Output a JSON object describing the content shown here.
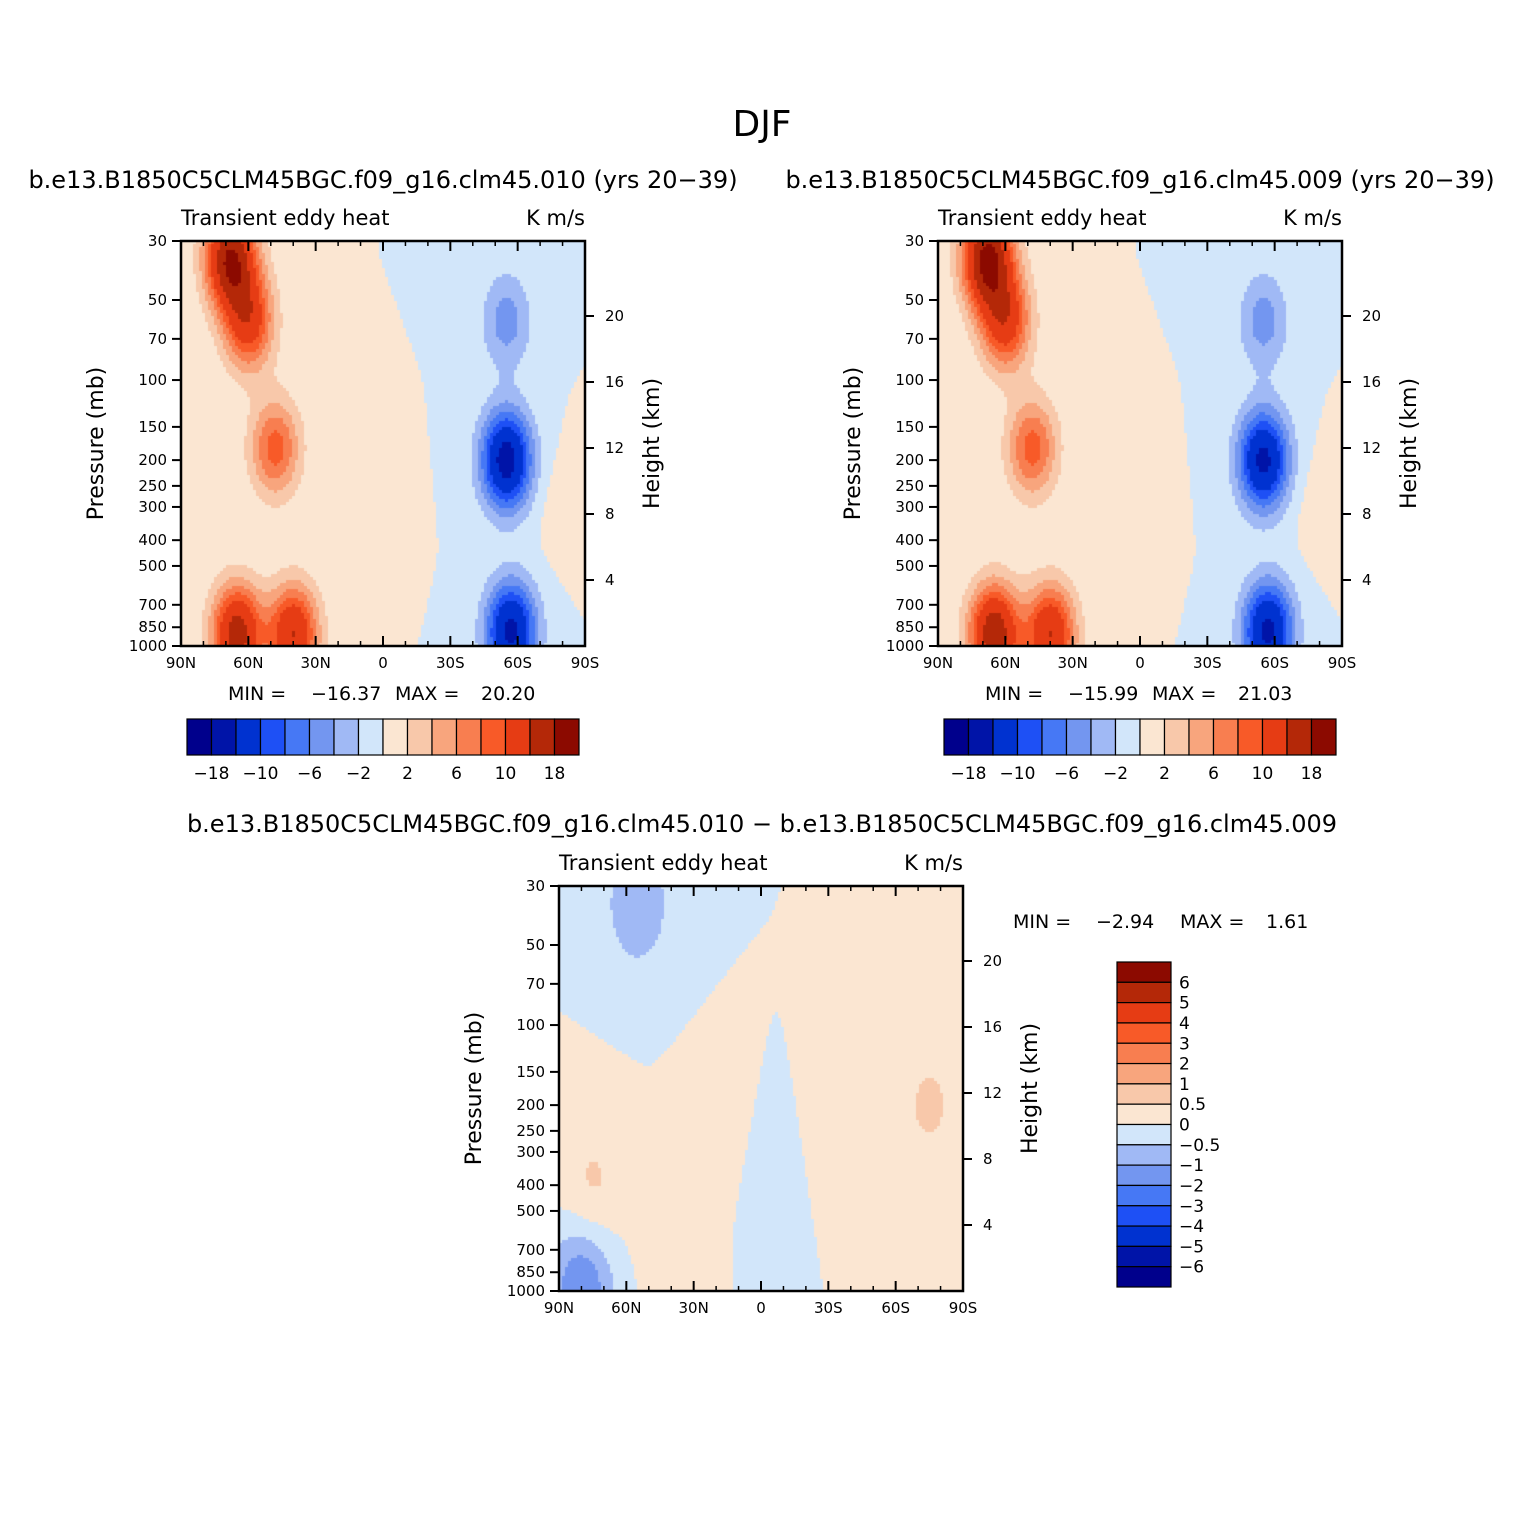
{
  "figure": {
    "title": "DJF",
    "diff_title": "b.e13.B1850C5CLM45BGC.f09_g16.clm45.010 − b.e13.B1850C5CLM45BGC.f09_g16.clm45.009"
  },
  "chart_data": [
    {
      "type": "heatmap",
      "title": "b.e13.B1850C5CLM45BGC.f09_g16.clm45.010 (yrs 20−39)",
      "variable_label": "Transient eddy heat",
      "units_label": "K m/s",
      "ylabel": "Pressure (mb)",
      "ylabel_right": "Height (km)",
      "x_ticks": [
        "90N",
        "60N",
        "30N",
        "0",
        "30S",
        "60S",
        "90S"
      ],
      "y_ticks": [
        "30",
        "50",
        "70",
        "100",
        "150",
        "200",
        "250",
        "300",
        "400",
        "500",
        "700",
        "850",
        "1000"
      ],
      "y_ticks_right": [
        "20",
        "16",
        "12",
        "8",
        "4"
      ],
      "min_label": "MIN =",
      "min_value": "−16.37",
      "max_label": "MAX =",
      "max_value": "20.20",
      "colorbar_labels": [
        "−18",
        "−10",
        "−6",
        "−2",
        "2",
        "6",
        "10",
        "18"
      ],
      "levels": [
        -18,
        -14,
        -10,
        -8,
        -6,
        -4,
        -2,
        0,
        2,
        4,
        6,
        8,
        10,
        14,
        18
      ],
      "features": [
        {
          "lat": 68,
          "p": 35,
          "value": 18
        },
        {
          "lat": 60,
          "p": 60,
          "value": 12
        },
        {
          "lat": 48,
          "p": 180,
          "value": 9
        },
        {
          "lat": 65,
          "p": 900,
          "value": 16
        },
        {
          "lat": 40,
          "p": 900,
          "value": 14
        },
        {
          "lat": -55,
          "p": 200,
          "value": -16
        },
        {
          "lat": -57,
          "p": 880,
          "value": -15
        },
        {
          "lat": -55,
          "p": 60,
          "value": -5
        },
        {
          "lat": 5,
          "p": 300,
          "value": 1
        },
        {
          "lat": -80,
          "p": 300,
          "value": 1
        }
      ]
    },
    {
      "type": "heatmap",
      "title": "b.e13.B1850C5CLM45BGC.f09_g16.clm45.009 (yrs 20−39)",
      "variable_label": "Transient eddy heat",
      "units_label": "K m/s",
      "ylabel": "Pressure (mb)",
      "ylabel_right": "Height (km)",
      "x_ticks": [
        "90N",
        "60N",
        "30N",
        "0",
        "30S",
        "60S",
        "90S"
      ],
      "y_ticks": [
        "30",
        "50",
        "70",
        "100",
        "150",
        "200",
        "250",
        "300",
        "400",
        "500",
        "700",
        "850",
        "1000"
      ],
      "y_ticks_right": [
        "20",
        "16",
        "12",
        "8",
        "4"
      ],
      "min_label": "MIN =",
      "min_value": "−15.99",
      "max_label": "MAX =",
      "max_value": "21.03",
      "colorbar_labels": [
        "−18",
        "−10",
        "−6",
        "−2",
        "2",
        "6",
        "10",
        "18"
      ],
      "levels": [
        -18,
        -14,
        -10,
        -8,
        -6,
        -4,
        -2,
        0,
        2,
        4,
        6,
        8,
        10,
        14,
        18
      ],
      "features": [
        {
          "lat": 68,
          "p": 35,
          "value": 19
        },
        {
          "lat": 60,
          "p": 60,
          "value": 12
        },
        {
          "lat": 48,
          "p": 180,
          "value": 9
        },
        {
          "lat": 65,
          "p": 900,
          "value": 17
        },
        {
          "lat": 40,
          "p": 900,
          "value": 14
        },
        {
          "lat": -55,
          "p": 200,
          "value": -15
        },
        {
          "lat": -57,
          "p": 880,
          "value": -15
        },
        {
          "lat": -55,
          "p": 60,
          "value": -5
        },
        {
          "lat": 5,
          "p": 300,
          "value": 1
        },
        {
          "lat": -80,
          "p": 300,
          "value": 1
        }
      ]
    },
    {
      "type": "heatmap",
      "title": "b.e13.B1850C5CLM45BGC.f09_g16.clm45.010 − b.e13.B1850C5CLM45BGC.f09_g16.clm45.009",
      "variable_label": "Transient eddy heat",
      "units_label": "K m/s",
      "ylabel": "Pressure (mb)",
      "ylabel_right": "Height (km)",
      "x_ticks": [
        "90N",
        "60N",
        "30N",
        "0",
        "30S",
        "60S",
        "90S"
      ],
      "y_ticks": [
        "30",
        "50",
        "70",
        "100",
        "150",
        "200",
        "250",
        "300",
        "400",
        "500",
        "700",
        "850",
        "1000"
      ],
      "y_ticks_right": [
        "20",
        "16",
        "12",
        "8",
        "4"
      ],
      "min_label": "MIN =",
      "min_value": "−2.94",
      "max_label": "MAX =",
      "max_value": "1.61",
      "colorbar_labels": [
        "6",
        "5",
        "4",
        "3",
        "2",
        "1",
        "0.5",
        "0",
        "−0.5",
        "−1",
        "−2",
        "−3",
        "−4",
        "−5",
        "−6"
      ],
      "levels": [
        -6,
        -5,
        -4,
        -3,
        -2,
        -1,
        -0.5,
        0,
        0.5,
        1,
        2,
        3,
        4,
        5,
        6
      ],
      "features": [
        {
          "lat": 75,
          "p": 400,
          "value": 0.6
        },
        {
          "lat": 40,
          "p": 600,
          "value": 0.4
        },
        {
          "lat": 20,
          "p": 300,
          "value": 0.3
        },
        {
          "lat": -40,
          "p": 250,
          "value": 0.3
        },
        {
          "lat": 80,
          "p": 980,
          "value": -1.5
        },
        {
          "lat": 55,
          "p": 35,
          "value": -1
        },
        {
          "lat": 0,
          "p": 400,
          "value": -0.2
        },
        {
          "lat": -75,
          "p": 200,
          "value": 0.6
        }
      ]
    }
  ],
  "palette": {
    "colorbar": [
      "#00008c",
      "#0014a8",
      "#0032d0",
      "#1e50f5",
      "#4678f5",
      "#7396f0",
      "#a0b9f5",
      "#d2e6fa",
      "#fbe6d2",
      "#f8c8aa",
      "#f8a57d",
      "#f87e50",
      "#f85a28",
      "#e63c14",
      "#b42808",
      "#8c0a00"
    ]
  }
}
